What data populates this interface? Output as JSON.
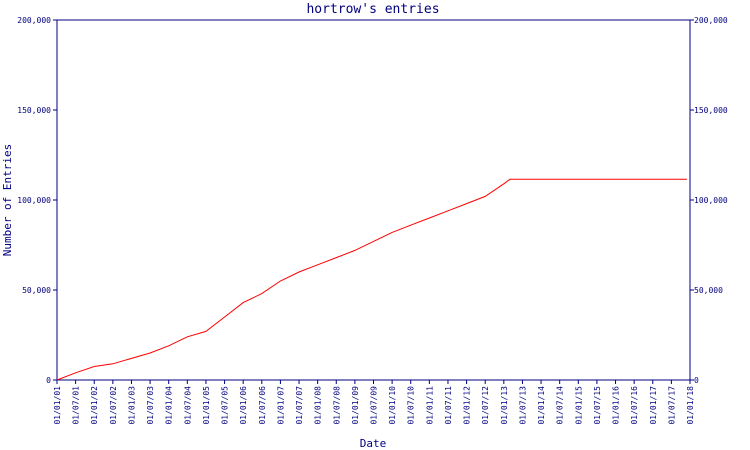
{
  "chart_data": {
    "type": "line",
    "title": "hortrow's entries",
    "xlabel": "Date",
    "ylabel": "Number of Entries",
    "ylim": [
      0,
      200000
    ],
    "yticks": [
      0,
      50000,
      100000,
      150000,
      200000
    ],
    "ytick_labels": [
      "0",
      "50,000",
      "100,000",
      "150,000",
      "200,000"
    ],
    "xticks": [
      "01/01/01",
      "01/07/01",
      "01/01/02",
      "01/07/02",
      "01/01/03",
      "01/07/03",
      "01/01/04",
      "01/07/04",
      "01/01/05",
      "01/07/05",
      "01/01/06",
      "01/07/06",
      "01/01/07",
      "01/07/07",
      "01/01/08",
      "01/07/08",
      "01/01/09",
      "01/07/09",
      "01/01/10",
      "01/07/10",
      "01/01/11",
      "01/07/11",
      "01/01/12",
      "01/07/12",
      "01/01/13",
      "01/07/13",
      "01/01/14",
      "01/07/14",
      "01/01/15",
      "01/07/15",
      "01/01/16",
      "01/07/16",
      "01/01/17",
      "01/07/17",
      "01/01/18"
    ],
    "y_axis_both_sides": true,
    "grid": false,
    "legend": "none",
    "series": [
      {
        "color": "#ff0000",
        "points": [
          [
            "01/01/01",
            0
          ],
          [
            "01/07/01",
            4000
          ],
          [
            "01/01/02",
            7500
          ],
          [
            "01/07/02",
            9000
          ],
          [
            "01/01/03",
            12000
          ],
          [
            "01/07/03",
            15000
          ],
          [
            "01/01/04",
            19000
          ],
          [
            "01/07/04",
            24000
          ],
          [
            "01/01/05",
            27000
          ],
          [
            "01/07/05",
            35000
          ],
          [
            "01/01/06",
            43000
          ],
          [
            "01/07/06",
            48000
          ],
          [
            "01/01/07",
            55000
          ],
          [
            "01/07/07",
            60000
          ],
          [
            "01/01/08",
            64000
          ],
          [
            "01/07/08",
            68000
          ],
          [
            "01/01/09",
            72000
          ],
          [
            "01/07/09",
            77000
          ],
          [
            "01/01/10",
            82000
          ],
          [
            "01/07/10",
            86000
          ],
          [
            "01/01/11",
            90000
          ],
          [
            "01/07/11",
            94000
          ],
          [
            "01/01/12",
            98000
          ],
          [
            "01/07/12",
            102000
          ],
          [
            "01/01/13",
            109000
          ],
          [
            "01/03/13",
            111500
          ],
          [
            "01/07/13",
            111500
          ],
          [
            "01/01/14",
            111500
          ],
          [
            "01/07/14",
            111500
          ],
          [
            "01/01/15",
            111500
          ],
          [
            "01/07/15",
            111500
          ],
          [
            "01/01/16",
            111500
          ],
          [
            "01/07/16",
            111500
          ],
          [
            "01/01/17",
            111500
          ],
          [
            "01/07/17",
            111500
          ],
          [
            "01/12/17",
            111500
          ]
        ]
      }
    ]
  },
  "colors": {
    "axis": "#000080",
    "text": "#000080",
    "series": "#ff0000",
    "background": "#ffffff"
  }
}
